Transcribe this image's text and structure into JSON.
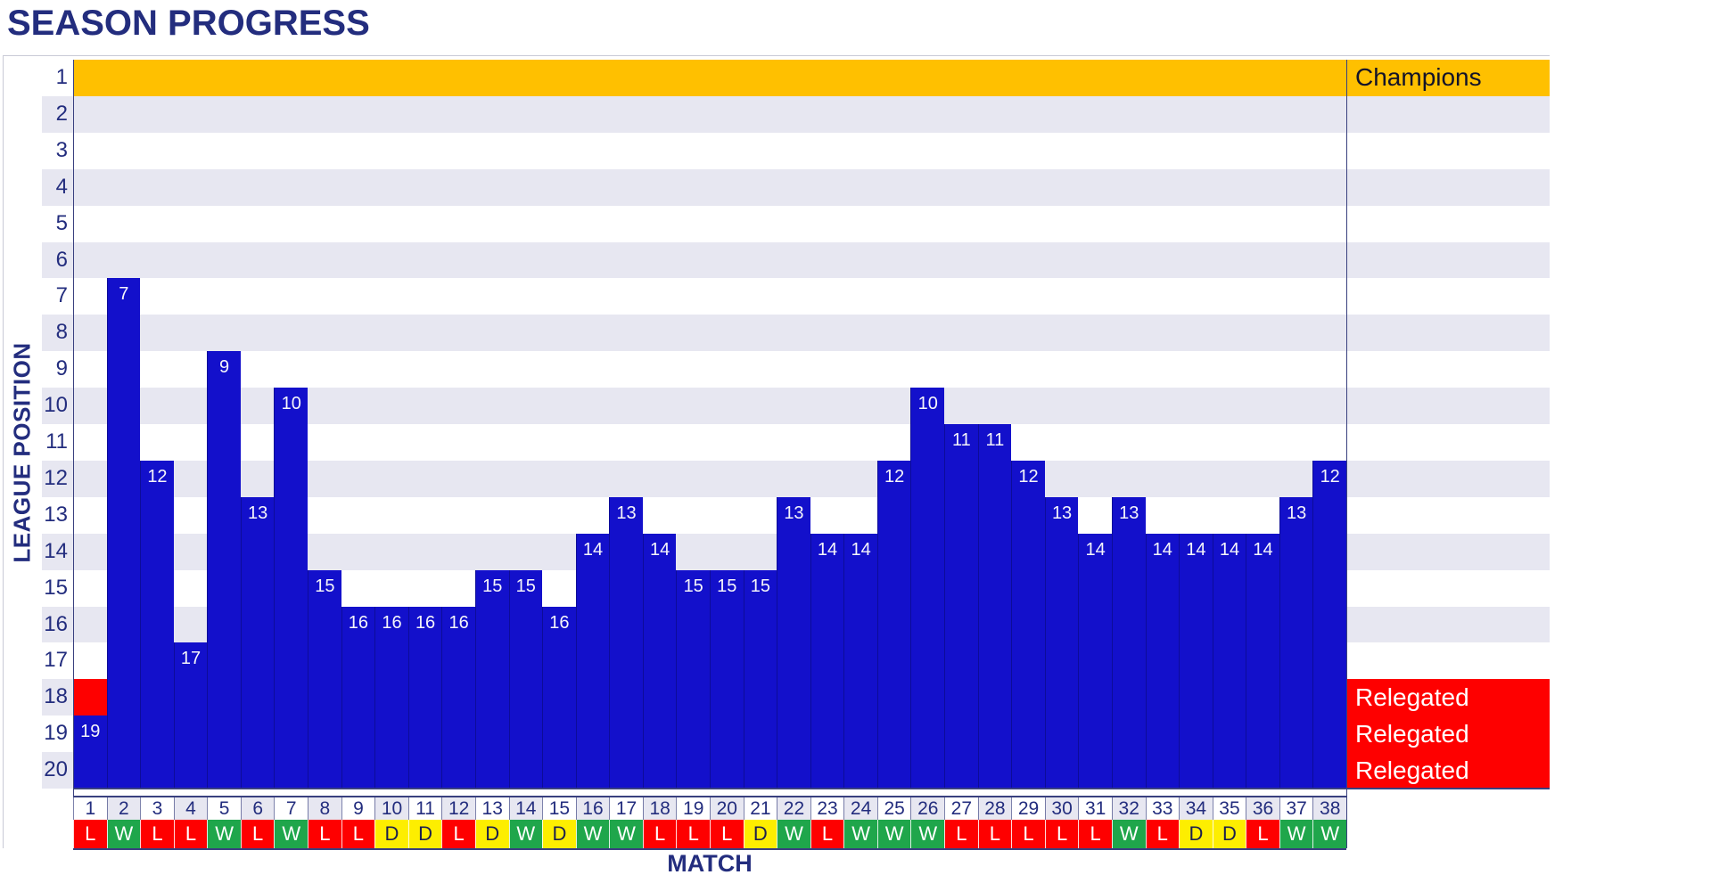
{
  "page": {
    "title": "SEASON PROGRESS"
  },
  "chart_data": {
    "type": "bar",
    "title": "SEASON PROGRESS",
    "xlabel": "MATCH",
    "ylabel": "LEAGUE POSITION",
    "y_axis_inverted": true,
    "y_ticks": [
      1,
      2,
      3,
      4,
      5,
      6,
      7,
      8,
      9,
      10,
      11,
      12,
      13,
      14,
      15,
      16,
      17,
      18,
      19,
      20
    ],
    "matches": [
      1,
      2,
      3,
      4,
      5,
      6,
      7,
      8,
      9,
      10,
      11,
      12,
      13,
      14,
      15,
      16,
      17,
      18,
      19,
      20,
      21,
      22,
      23,
      24,
      25,
      26,
      27,
      28,
      29,
      30,
      31,
      32,
      33,
      34,
      35,
      36,
      37,
      38
    ],
    "positions": [
      19,
      7,
      12,
      17,
      9,
      13,
      10,
      15,
      16,
      16,
      16,
      16,
      15,
      15,
      16,
      14,
      13,
      14,
      15,
      15,
      15,
      13,
      14,
      14,
      12,
      10,
      11,
      11,
      12,
      13,
      14,
      13,
      14,
      14,
      14,
      14,
      13,
      12
    ],
    "results": [
      "L",
      "W",
      "L",
      "L",
      "W",
      "L",
      "W",
      "L",
      "L",
      "D",
      "D",
      "L",
      "D",
      "W",
      "D",
      "W",
      "W",
      "L",
      "L",
      "L",
      "D",
      "W",
      "L",
      "W",
      "W",
      "W",
      "L",
      "L",
      "L",
      "L",
      "L",
      "W",
      "L",
      "D",
      "D",
      "L",
      "W",
      "W"
    ],
    "bands": {
      "champions": {
        "row": 1,
        "label": "Champions",
        "color": "#FFC000",
        "text_color": "#131329"
      },
      "relegated": {
        "rows": [
          18,
          19,
          20
        ],
        "label": "Relegated",
        "color": "#FE0000",
        "text_color": "#FFFFFF"
      }
    },
    "result_colors": {
      "W": {
        "bg": "#1FA64B",
        "text": "#FFFFFF"
      },
      "D": {
        "bg": "#FDEE00",
        "text": "#1B1F4E"
      },
      "L": {
        "bg": "#FE0000",
        "text": "#FFFFFF"
      }
    },
    "colors": {
      "bar": "#1310CB",
      "bar_label": "#F5F5FA",
      "stripe": "#E7E7F1",
      "axis_text": "#232D7E",
      "axis_line": "#39407F"
    }
  }
}
